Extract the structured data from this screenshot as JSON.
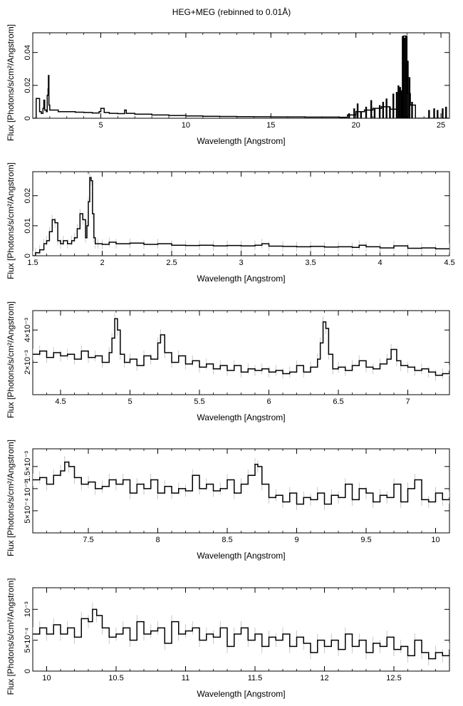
{
  "figure": {
    "title": "HEG+MEG (rebinned to 0.01Å)"
  },
  "chart_data": [
    {
      "type": "line",
      "xlabel": "Wavelength [Angstrom]",
      "ylabel": "Flux [Photons/s/cm²/Angstrom]",
      "xlim": [
        1.0,
        25.5
      ],
      "ylim": [
        0,
        0.052
      ],
      "xticks": [
        5,
        10,
        15,
        20,
        25
      ],
      "xtick_labels": [
        "5",
        "10",
        "15",
        "20",
        "25"
      ],
      "yticks": [
        0,
        0.02,
        0.04
      ],
      "ytick_labels": [
        "0",
        "0.02",
        "0.04"
      ],
      "series": [
        {
          "x": [
            1.0,
            1.2,
            1.4,
            1.5,
            1.6,
            1.65,
            1.7,
            1.8,
            1.85,
            1.9,
            1.92,
            1.95,
            2.0,
            2.5,
            3.0,
            3.5,
            4.0,
            4.5,
            4.9,
            5.0,
            5.2,
            5.5,
            6.0,
            6.4,
            6.5,
            7.0,
            8.0,
            9.0,
            10.0,
            11.0,
            12.0,
            13.0,
            14.0,
            15.0,
            16.0,
            17.0,
            18.0,
            19.0,
            19.5,
            20.0,
            20.5,
            21.0,
            21.5,
            22.0,
            22.5,
            22.6,
            22.8,
            22.9,
            23.0,
            23.2,
            23.5,
            24.0,
            24.5,
            25.0,
            25.5
          ],
          "y": [
            0.0,
            0.012,
            0.004,
            0.003,
            0.006,
            0.011,
            0.005,
            0.004,
            0.014,
            0.018,
            0.026,
            0.008,
            0.005,
            0.004,
            0.004,
            0.0037,
            0.0035,
            0.0032,
            0.004,
            0.006,
            0.0035,
            0.003,
            0.0028,
            0.005,
            0.003,
            0.0025,
            0.002,
            0.0017,
            0.0014,
            0.0012,
            0.0011,
            0.001,
            0.0009,
            0.0008,
            0.0008,
            0.0007,
            0.0007,
            0.0006,
            0.002,
            0.004,
            0.005,
            0.006,
            0.007,
            0.0055,
            0.008,
            0.015,
            0.05,
            0.05,
            0.015,
            0.008,
            0.0,
            0.0,
            0.0,
            0.0,
            0.0
          ]
        },
        {
          "kind": "spikes",
          "x": [
            19.6,
            19.9,
            20.1,
            20.3,
            20.6,
            20.9,
            21.1,
            21.4,
            21.6,
            21.8,
            22.0,
            22.2,
            22.4,
            22.5,
            22.6,
            22.7,
            22.75,
            22.85,
            22.95,
            23.05,
            23.15,
            23.3,
            24.3,
            24.6,
            24.8,
            25.1,
            25.3
          ],
          "y": [
            0.003,
            0.006,
            0.009,
            0.004,
            0.007,
            0.011,
            0.006,
            0.008,
            0.01,
            0.012,
            0.007,
            0.015,
            0.016,
            0.02,
            0.019,
            0.017,
            0.05,
            0.049,
            0.05,
            0.035,
            0.025,
            0.01,
            0.005,
            0.006,
            0.005,
            0.006,
            0.007
          ]
        }
      ]
    },
    {
      "type": "line",
      "xlabel": "Wavelength [Angstrom]",
      "ylabel": "Flux [Photons/s/cm²/Angstrom]",
      "xlim": [
        1.5,
        4.5
      ],
      "ylim": [
        0,
        0.028
      ],
      "xticks": [
        1.5,
        2,
        2.5,
        3,
        3.5,
        4,
        4.5
      ],
      "xtick_labels": [
        "1.5",
        "2",
        "2.5",
        "3",
        "3.5",
        "4",
        "4.5"
      ],
      "yticks": [
        0,
        0.01,
        0.02
      ],
      "ytick_labels": [
        "0",
        "0.01",
        "0.02"
      ],
      "series": [
        {
          "x": [
            1.5,
            1.52,
            1.55,
            1.58,
            1.6,
            1.62,
            1.64,
            1.66,
            1.68,
            1.7,
            1.72,
            1.75,
            1.78,
            1.8,
            1.82,
            1.84,
            1.86,
            1.88,
            1.89,
            1.9,
            1.91,
            1.92,
            1.93,
            1.94,
            1.95,
            1.97,
            2.0,
            2.05,
            2.1,
            2.2,
            2.3,
            2.4,
            2.5,
            2.6,
            2.7,
            2.8,
            2.9,
            3.0,
            3.1,
            3.15,
            3.2,
            3.3,
            3.4,
            3.5,
            3.6,
            3.7,
            3.8,
            3.85,
            3.9,
            4.0,
            4.1,
            4.2,
            4.3,
            4.4,
            4.5
          ],
          "y": [
            0.0,
            0.001,
            0.002,
            0.004,
            0.005,
            0.008,
            0.012,
            0.011,
            0.005,
            0.004,
            0.005,
            0.004,
            0.005,
            0.006,
            0.009,
            0.014,
            0.012,
            0.006,
            0.01,
            0.018,
            0.026,
            0.025,
            0.014,
            0.006,
            0.004,
            0.004,
            0.0038,
            0.0045,
            0.004,
            0.0042,
            0.0038,
            0.004,
            0.0035,
            0.0034,
            0.0035,
            0.0033,
            0.0034,
            0.0033,
            0.0035,
            0.004,
            0.0032,
            0.0031,
            0.003,
            0.0031,
            0.0029,
            0.003,
            0.0028,
            0.0035,
            0.003,
            0.0026,
            0.0033,
            0.0025,
            0.0026,
            0.0023,
            0.0025
          ]
        }
      ]
    },
    {
      "type": "line",
      "xlabel": "Wavelength [Angstrom]",
      "ylabel": "Flux [Photons/s/cm²/Angstrom]",
      "xlim": [
        4.3,
        7.3
      ],
      "ylim": [
        0,
        0.0052
      ],
      "xticks": [
        4.5,
        5,
        5.5,
        6,
        6.5,
        7
      ],
      "xtick_labels": [
        "4.5",
        "5",
        "5.5",
        "6",
        "6.5",
        "7"
      ],
      "yticks": [
        0.002,
        0.004
      ],
      "ytick_labels": [
        "2×10⁻³",
        "4×10⁻³"
      ],
      "series": [
        {
          "x": [
            4.3,
            4.35,
            4.4,
            4.45,
            4.5,
            4.55,
            4.6,
            4.65,
            4.7,
            4.75,
            4.8,
            4.85,
            4.87,
            4.89,
            4.91,
            4.93,
            4.96,
            5.0,
            5.05,
            5.1,
            5.15,
            5.2,
            5.22,
            5.25,
            5.3,
            5.35,
            5.4,
            5.45,
            5.5,
            5.55,
            5.6,
            5.65,
            5.7,
            5.75,
            5.8,
            5.85,
            5.9,
            5.95,
            6.0,
            6.05,
            6.1,
            6.15,
            6.2,
            6.25,
            6.3,
            6.35,
            6.37,
            6.39,
            6.41,
            6.43,
            6.46,
            6.5,
            6.55,
            6.6,
            6.65,
            6.7,
            6.75,
            6.8,
            6.85,
            6.88,
            6.92,
            6.95,
            7.0,
            7.05,
            7.1,
            7.15,
            7.2,
            7.25,
            7.3
          ],
          "y": [
            0.0025,
            0.0027,
            0.0023,
            0.0026,
            0.0024,
            0.0025,
            0.0022,
            0.0027,
            0.0023,
            0.0024,
            0.002,
            0.0026,
            0.0035,
            0.0047,
            0.004,
            0.0025,
            0.002,
            0.0022,
            0.0018,
            0.0024,
            0.0022,
            0.0032,
            0.0037,
            0.0026,
            0.002,
            0.0024,
            0.0019,
            0.0021,
            0.0017,
            0.0019,
            0.0016,
            0.0018,
            0.0015,
            0.0018,
            0.0014,
            0.0016,
            0.0015,
            0.0016,
            0.0014,
            0.0015,
            0.0013,
            0.0014,
            0.0018,
            0.0014,
            0.0017,
            0.0022,
            0.0032,
            0.0045,
            0.0041,
            0.0025,
            0.0016,
            0.0017,
            0.0015,
            0.0018,
            0.0021,
            0.0017,
            0.0016,
            0.0019,
            0.0022,
            0.0028,
            0.0021,
            0.0018,
            0.0017,
            0.0015,
            0.0016,
            0.0014,
            0.0012,
            0.0013,
            0.0015
          ]
        }
      ]
    },
    {
      "type": "line",
      "xlabel": "Wavelength [Angstrom]",
      "ylabel": "Flux [Photons/s/cm²/Angstrom]",
      "xlim": [
        7.1,
        10.1
      ],
      "ylim": [
        0,
        0.0019
      ],
      "xticks": [
        7.5,
        8,
        8.5,
        9,
        9.5,
        10
      ],
      "xtick_labels": [
        "7.5",
        "8",
        "8.5",
        "9",
        "9.5",
        "10"
      ],
      "yticks": [
        0.0005,
        0.001,
        0.0015
      ],
      "ytick_labels": [
        "5×10⁻⁴",
        "10⁻³",
        "1.5×10⁻³"
      ],
      "series": [
        {
          "x": [
            7.1,
            7.15,
            7.2,
            7.25,
            7.3,
            7.33,
            7.36,
            7.4,
            7.45,
            7.5,
            7.55,
            7.6,
            7.65,
            7.7,
            7.75,
            7.8,
            7.85,
            7.9,
            7.95,
            8.0,
            8.05,
            8.1,
            8.15,
            8.2,
            8.25,
            8.3,
            8.35,
            8.4,
            8.45,
            8.5,
            8.55,
            8.6,
            8.65,
            8.7,
            8.72,
            8.75,
            8.8,
            8.85,
            8.9,
            8.95,
            9.0,
            9.05,
            9.1,
            9.15,
            9.2,
            9.25,
            9.3,
            9.35,
            9.4,
            9.45,
            9.5,
            9.55,
            9.6,
            9.65,
            9.7,
            9.75,
            9.8,
            9.85,
            9.9,
            9.95,
            10.0,
            10.05,
            10.1
          ],
          "y": [
            0.0012,
            0.00125,
            0.0011,
            0.0013,
            0.0014,
            0.0016,
            0.0015,
            0.00125,
            0.0011,
            0.00115,
            0.001,
            0.00105,
            0.0012,
            0.0011,
            0.0012,
            0.0009,
            0.0011,
            0.001,
            0.0012,
            0.0009,
            0.00105,
            0.0009,
            0.001,
            0.00095,
            0.0013,
            0.001,
            0.0011,
            0.00095,
            0.001,
            0.0012,
            0.0009,
            0.0011,
            0.0013,
            0.00155,
            0.0015,
            0.0011,
            0.0008,
            0.00085,
            0.0007,
            0.0009,
            0.00065,
            0.0008,
            0.00075,
            0.0009,
            0.00065,
            0.00085,
            0.0008,
            0.0011,
            0.00075,
            0.001,
            0.0009,
            0.0007,
            0.00085,
            0.0008,
            0.0011,
            0.0007,
            0.001,
            0.0012,
            0.00075,
            0.0007,
            0.0009,
            0.00075,
            0.0008
          ]
        }
      ]
    },
    {
      "type": "line",
      "xlabel": "Wavelength [Angstrom]",
      "ylabel": "Flux [Photons/s/cm²/Angstrom]",
      "xlim": [
        9.9,
        12.9
      ],
      "ylim": [
        0,
        0.00135
      ],
      "xticks": [
        10,
        10.5,
        11,
        11.5,
        12,
        12.5
      ],
      "xtick_labels": [
        "10",
        "10.5",
        "11",
        "11.5",
        "12",
        "12.5"
      ],
      "yticks": [
        0,
        0.0005,
        0.001
      ],
      "ytick_labels": [
        "0",
        "5×10⁻⁴",
        "10⁻³"
      ],
      "series": [
        {
          "x": [
            9.9,
            9.95,
            10.0,
            10.05,
            10.1,
            10.15,
            10.2,
            10.25,
            10.3,
            10.33,
            10.36,
            10.4,
            10.45,
            10.5,
            10.55,
            10.6,
            10.65,
            10.7,
            10.75,
            10.8,
            10.85,
            10.9,
            10.95,
            11.0,
            11.05,
            11.1,
            11.15,
            11.2,
            11.25,
            11.3,
            11.35,
            11.4,
            11.45,
            11.5,
            11.55,
            11.6,
            11.65,
            11.7,
            11.75,
            11.8,
            11.85,
            11.9,
            11.95,
            12.0,
            12.05,
            12.1,
            12.15,
            12.2,
            12.25,
            12.3,
            12.35,
            12.4,
            12.45,
            12.5,
            12.55,
            12.6,
            12.65,
            12.7,
            12.75,
            12.8,
            12.85,
            12.9
          ],
          "y": [
            0.0006,
            0.0007,
            0.0006,
            0.00075,
            0.0006,
            0.0007,
            0.00055,
            0.00085,
            0.0008,
            0.001,
            0.0009,
            0.0007,
            0.00055,
            0.0006,
            0.0007,
            0.0005,
            0.0008,
            0.0006,
            0.00065,
            0.0007,
            0.00045,
            0.0008,
            0.0006,
            0.00065,
            0.0007,
            0.0005,
            0.0006,
            0.00055,
            0.0007,
            0.0004,
            0.0006,
            0.0007,
            0.0005,
            0.0006,
            0.0004,
            0.00055,
            0.0005,
            0.0006,
            0.0004,
            0.00055,
            0.00045,
            0.0003,
            0.0005,
            0.0004,
            0.0005,
            0.00035,
            0.0006,
            0.0004,
            0.0005,
            0.0003,
            0.00045,
            0.0004,
            0.00055,
            0.00035,
            0.0004,
            0.00025,
            0.0005,
            0.0003,
            0.0002,
            0.0003,
            0.00025,
            0.00035
          ]
        }
      ]
    }
  ]
}
